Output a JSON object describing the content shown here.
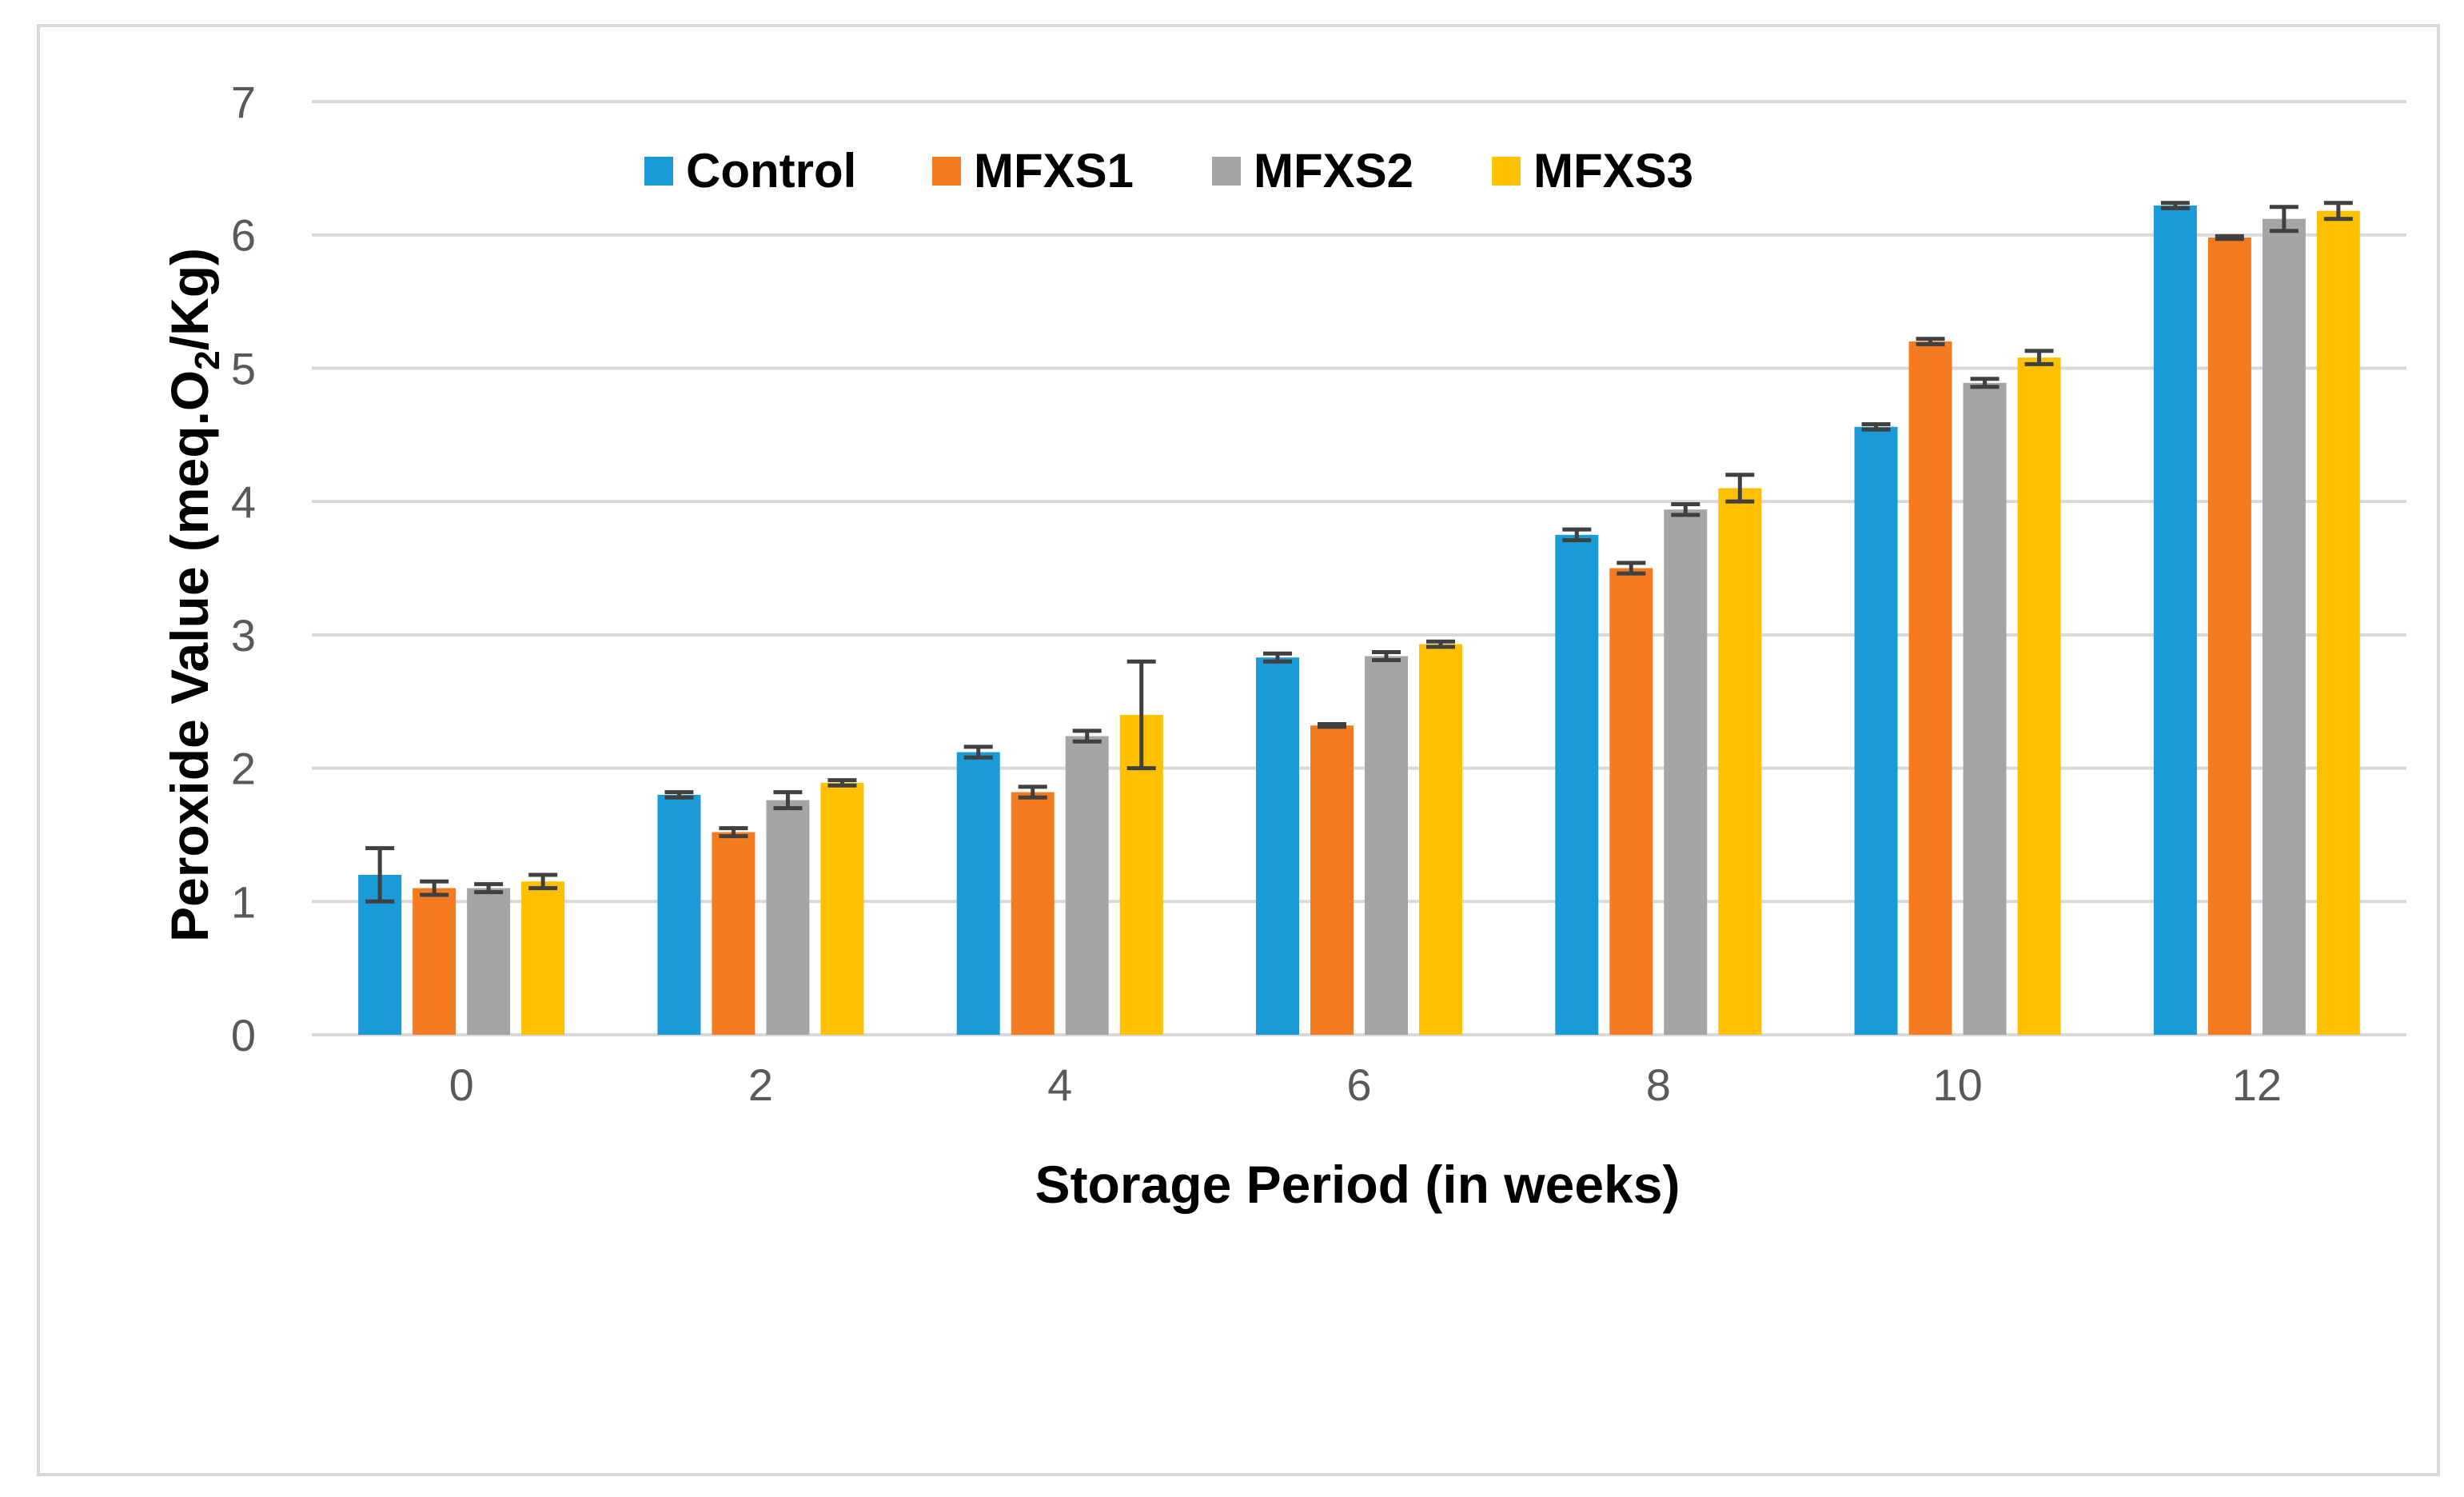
{
  "chart_data": {
    "type": "bar",
    "title": "",
    "xlabel": "Storage Period (in weeks)",
    "ylabel_main": "Peroxide Value (meq.O",
    "ylabel_sub": "2",
    "ylabel_end": "/Kg)",
    "ylim": [
      0,
      7
    ],
    "yticks": [
      "0",
      "1",
      "2",
      "3",
      "4",
      "5",
      "6",
      "7"
    ],
    "grid": true,
    "legend_position": "top",
    "categories": [
      "0",
      "2",
      "4",
      "6",
      "8",
      "10",
      "12"
    ],
    "series": [
      {
        "name": "Control",
        "color": "#1a9ad6",
        "values": [
          1.2,
          1.8,
          2.12,
          2.83,
          3.75,
          4.56,
          6.22
        ],
        "errors": [
          0.2,
          0.02,
          0.04,
          0.03,
          0.04,
          0.02,
          0.02
        ]
      },
      {
        "name": "MFXS1",
        "color": "#f47b20",
        "values": [
          1.1,
          1.52,
          1.82,
          2.32,
          3.5,
          5.2,
          5.98
        ],
        "errors": [
          0.05,
          0.03,
          0.04,
          0.01,
          0.04,
          0.02,
          0.01
        ]
      },
      {
        "name": "MFXS2",
        "color": "#a5a5a5",
        "values": [
          1.1,
          1.76,
          2.24,
          2.84,
          3.94,
          4.89,
          6.12
        ],
        "errors": [
          0.03,
          0.06,
          0.04,
          0.03,
          0.04,
          0.03,
          0.09
        ]
      },
      {
        "name": "MFXS3",
        "color": "#ffc000",
        "values": [
          1.15,
          1.89,
          2.4,
          2.93,
          4.1,
          5.08,
          6.18
        ],
        "errors": [
          0.05,
          0.02,
          0.4,
          0.02,
          0.1,
          0.05,
          0.06
        ]
      }
    ]
  }
}
